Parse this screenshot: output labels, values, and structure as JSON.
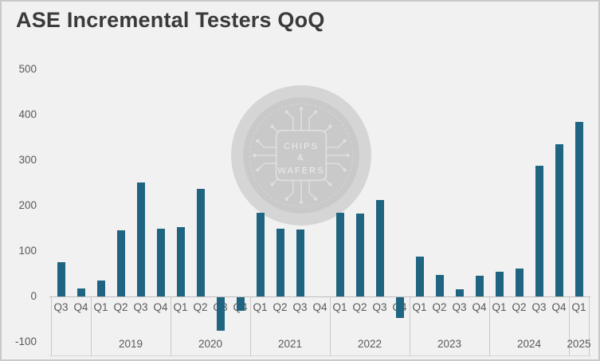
{
  "title": "ASE Incremental Testers QoQ",
  "watermark": {
    "line1": "CHIPS",
    "line2": "&",
    "line3": "WAFERS"
  },
  "colors": {
    "background": "#f1f1f1",
    "frame_border": "#c9c9c9",
    "title_text": "#3a3a3a",
    "axis_text": "#595959",
    "bar": "#1f6480",
    "watermark_outer": "#d5d5d5",
    "watermark_inner": "#c9c9c9",
    "watermark_detail": "#dedede"
  },
  "chart_data": {
    "type": "bar",
    "title": "ASE Incremental Testers QoQ",
    "ylim": [
      -100,
      500
    ],
    "yticks": [
      500,
      400,
      300,
      200,
      100,
      0,
      -100
    ],
    "ytick_interval": 100,
    "grid": false,
    "legend": false,
    "bar_color": "#1f6480",
    "groups": [
      {
        "year": "",
        "quarters": [
          "Q3",
          "Q4"
        ],
        "values": [
          76,
          18
        ]
      },
      {
        "year": "2019",
        "quarters": [
          "Q1",
          "Q2",
          "Q3",
          "Q4"
        ],
        "values": [
          35,
          146,
          251,
          149
        ]
      },
      {
        "year": "2020",
        "quarters": [
          "Q1",
          "Q2",
          "Q3",
          "Q4"
        ],
        "values": [
          152,
          237,
          -74,
          -30
        ]
      },
      {
        "year": "2021",
        "quarters": [
          "Q1",
          "Q2",
          "Q3",
          "Q4"
        ],
        "values": [
          184,
          150,
          147,
          0
        ]
      },
      {
        "year": "2022",
        "quarters": [
          "Q1",
          "Q2",
          "Q3",
          "Q4"
        ],
        "values": [
          184,
          183,
          213,
          -45
        ]
      },
      {
        "year": "2023",
        "quarters": [
          "Q1",
          "Q2",
          "Q3",
          "Q4"
        ],
        "values": [
          88,
          48,
          15,
          45
        ]
      },
      {
        "year": "2024",
        "quarters": [
          "Q1",
          "Q2",
          "Q3",
          "Q4"
        ],
        "values": [
          55,
          62,
          288,
          335
        ]
      },
      {
        "year": "2025",
        "quarters": [
          "Q1"
        ],
        "values": [
          385
        ]
      }
    ]
  }
}
